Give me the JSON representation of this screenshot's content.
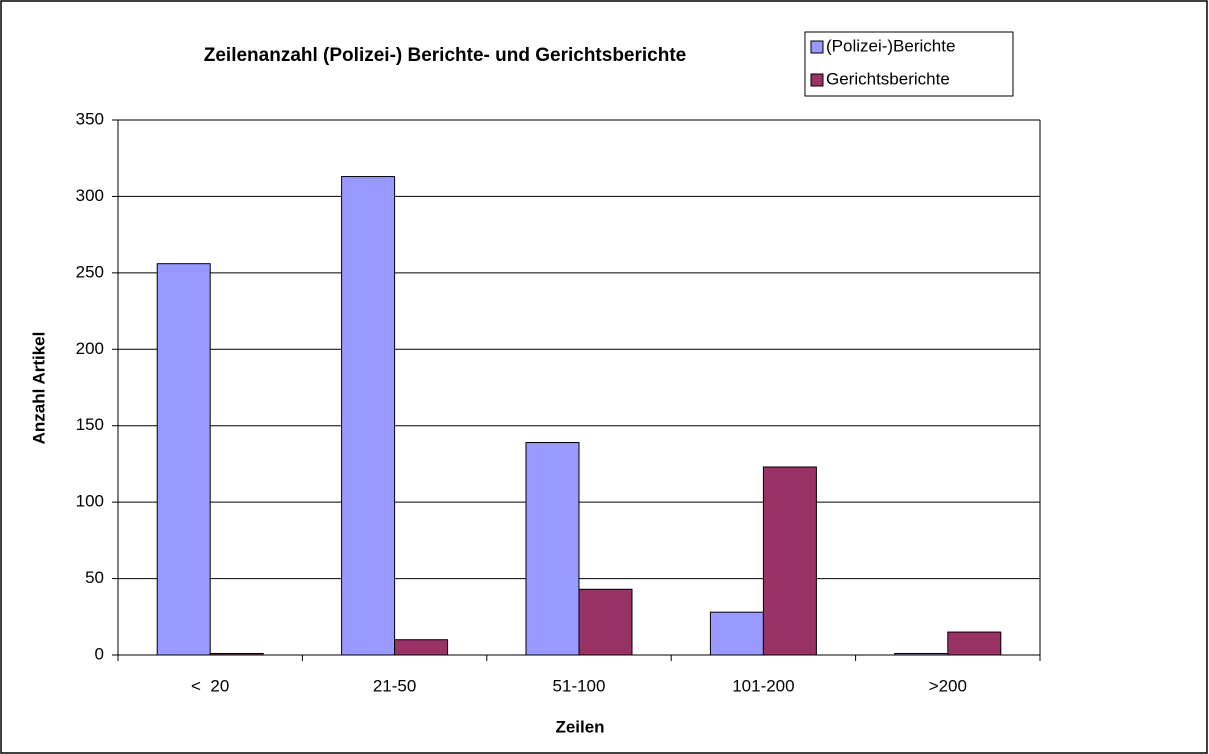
{
  "chart_data": {
    "type": "bar",
    "title": "Zeilenanzahl (Polizei-) Berichte- und Gerichtsberichte",
    "xlabel": "Zeilen",
    "ylabel": "Anzahl Artikel",
    "categories": [
      "<  20",
      "21-50",
      "51-100",
      "101-200",
      ">200"
    ],
    "series": [
      {
        "name": "(Polizei-)Berichte",
        "color": "#9999ff",
        "values": [
          256,
          313,
          139,
          28,
          1
        ]
      },
      {
        "name": "Gerichtsberichte",
        "color": "#993366",
        "values": [
          1,
          10,
          43,
          123,
          15
        ]
      }
    ],
    "ylim": [
      0,
      350
    ],
    "yticks": [
      0,
      50,
      100,
      150,
      200,
      250,
      300,
      350
    ],
    "grid": true,
    "legend": "top-right"
  }
}
